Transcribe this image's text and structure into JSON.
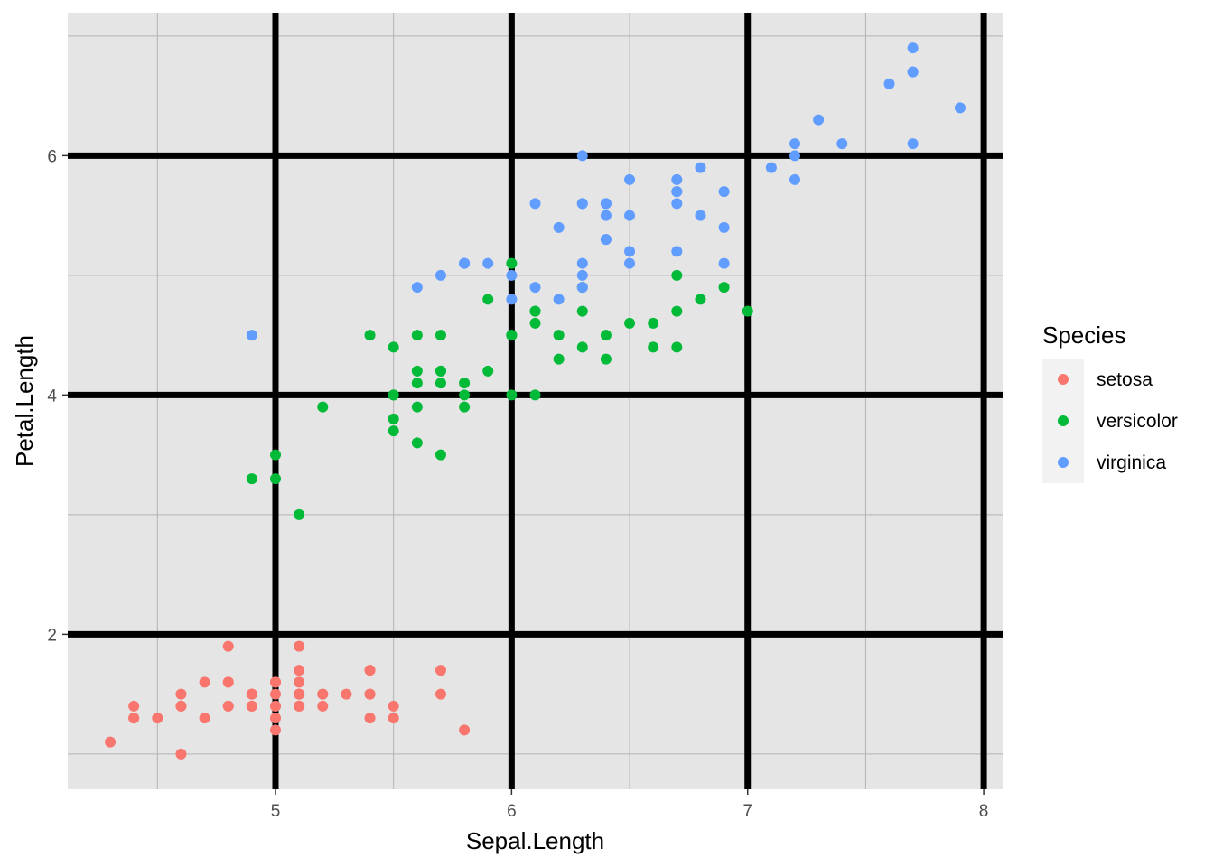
{
  "chart_data": {
    "type": "scatter",
    "title": "",
    "xlabel": "Sepal.Length",
    "ylabel": "Petal.Length",
    "xlim": [
      4.12,
      8.08
    ],
    "ylim": [
      0.705,
      7.195
    ],
    "x_ticks": [
      5,
      6,
      7,
      8
    ],
    "y_ticks": [
      2,
      4,
      6
    ],
    "x_minor_ticks": [
      4.5,
      5.5,
      6.5,
      7.5
    ],
    "y_minor_ticks": [
      1,
      3,
      5,
      7
    ],
    "grid": true,
    "background_color": "#e5e5e5",
    "major_grid_color": "#000000",
    "minor_grid_color": "#b3b3b3",
    "legend_position": "right",
    "legend_title": "Species",
    "series": [
      {
        "name": "setosa",
        "color": "#f8766d",
        "points": [
          [
            5.1,
            1.4
          ],
          [
            4.9,
            1.4
          ],
          [
            4.7,
            1.3
          ],
          [
            4.6,
            1.5
          ],
          [
            5.0,
            1.4
          ],
          [
            5.4,
            1.7
          ],
          [
            4.6,
            1.4
          ],
          [
            5.0,
            1.5
          ],
          [
            4.4,
            1.4
          ],
          [
            4.9,
            1.5
          ],
          [
            5.4,
            1.5
          ],
          [
            4.8,
            1.6
          ],
          [
            4.8,
            1.4
          ],
          [
            4.3,
            1.1
          ],
          [
            5.8,
            1.2
          ],
          [
            5.7,
            1.5
          ],
          [
            5.4,
            1.3
          ],
          [
            5.1,
            1.4
          ],
          [
            5.7,
            1.7
          ],
          [
            5.1,
            1.5
          ],
          [
            5.4,
            1.7
          ],
          [
            5.1,
            1.5
          ],
          [
            4.6,
            1.0
          ],
          [
            5.1,
            1.7
          ],
          [
            4.8,
            1.9
          ],
          [
            5.0,
            1.6
          ],
          [
            5.0,
            1.6
          ],
          [
            5.2,
            1.5
          ],
          [
            5.2,
            1.4
          ],
          [
            4.7,
            1.6
          ],
          [
            4.8,
            1.6
          ],
          [
            5.4,
            1.5
          ],
          [
            5.2,
            1.5
          ],
          [
            5.5,
            1.4
          ],
          [
            4.9,
            1.5
          ],
          [
            5.0,
            1.2
          ],
          [
            5.5,
            1.3
          ],
          [
            4.9,
            1.4
          ],
          [
            4.4,
            1.3
          ],
          [
            5.1,
            1.5
          ],
          [
            5.0,
            1.3
          ],
          [
            4.5,
            1.3
          ],
          [
            4.4,
            1.3
          ],
          [
            5.0,
            1.6
          ],
          [
            5.1,
            1.9
          ],
          [
            4.8,
            1.4
          ],
          [
            5.1,
            1.6
          ],
          [
            4.6,
            1.4
          ],
          [
            5.3,
            1.5
          ],
          [
            5.0,
            1.4
          ]
        ]
      },
      {
        "name": "versicolor",
        "color": "#00ba38",
        "points": [
          [
            7.0,
            4.7
          ],
          [
            6.4,
            4.5
          ],
          [
            6.9,
            4.9
          ],
          [
            5.5,
            4.0
          ],
          [
            6.5,
            4.6
          ],
          [
            5.7,
            4.5
          ],
          [
            6.3,
            4.7
          ],
          [
            4.9,
            3.3
          ],
          [
            6.6,
            4.6
          ],
          [
            5.2,
            3.9
          ],
          [
            5.0,
            3.5
          ],
          [
            5.9,
            4.2
          ],
          [
            6.0,
            4.0
          ],
          [
            6.1,
            4.7
          ],
          [
            5.6,
            3.6
          ],
          [
            6.7,
            4.4
          ],
          [
            5.6,
            4.5
          ],
          [
            5.8,
            4.1
          ],
          [
            6.2,
            4.5
          ],
          [
            5.6,
            3.9
          ],
          [
            5.9,
            4.8
          ],
          [
            6.1,
            4.0
          ],
          [
            6.3,
            4.9
          ],
          [
            6.1,
            4.7
          ],
          [
            6.4,
            4.3
          ],
          [
            6.6,
            4.4
          ],
          [
            6.8,
            4.8
          ],
          [
            6.7,
            5.0
          ],
          [
            6.0,
            4.5
          ],
          [
            5.7,
            3.5
          ],
          [
            5.5,
            3.8
          ],
          [
            5.5,
            3.7
          ],
          [
            5.8,
            3.9
          ],
          [
            6.0,
            5.1
          ],
          [
            5.4,
            4.5
          ],
          [
            6.0,
            4.5
          ],
          [
            6.7,
            4.7
          ],
          [
            6.3,
            4.4
          ],
          [
            5.6,
            4.1
          ],
          [
            5.5,
            4.0
          ],
          [
            5.5,
            4.4
          ],
          [
            6.1,
            4.6
          ],
          [
            5.8,
            4.0
          ],
          [
            5.0,
            3.3
          ],
          [
            5.6,
            4.2
          ],
          [
            5.7,
            4.2
          ],
          [
            5.7,
            4.2
          ],
          [
            6.2,
            4.3
          ],
          [
            5.1,
            3.0
          ],
          [
            5.7,
            4.1
          ]
        ]
      },
      {
        "name": "virginica",
        "color": "#619cff",
        "points": [
          [
            6.3,
            6.0
          ],
          [
            5.8,
            5.1
          ],
          [
            7.1,
            5.9
          ],
          [
            6.3,
            5.6
          ],
          [
            6.5,
            5.8
          ],
          [
            7.6,
            6.6
          ],
          [
            4.9,
            4.5
          ],
          [
            7.3,
            6.3
          ],
          [
            6.7,
            5.8
          ],
          [
            7.2,
            6.1
          ],
          [
            6.5,
            5.1
          ],
          [
            6.4,
            5.3
          ],
          [
            6.8,
            5.5
          ],
          [
            5.7,
            5.0
          ],
          [
            5.8,
            5.1
          ],
          [
            6.4,
            5.3
          ],
          [
            6.5,
            5.5
          ],
          [
            7.7,
            6.7
          ],
          [
            7.7,
            6.9
          ],
          [
            6.0,
            5.0
          ],
          [
            6.9,
            5.7
          ],
          [
            5.6,
            4.9
          ],
          [
            7.7,
            6.7
          ],
          [
            6.3,
            4.9
          ],
          [
            6.7,
            5.7
          ],
          [
            7.2,
            6.0
          ],
          [
            6.2,
            4.8
          ],
          [
            6.1,
            4.9
          ],
          [
            6.4,
            5.6
          ],
          [
            7.2,
            5.8
          ],
          [
            7.4,
            6.1
          ],
          [
            7.9,
            6.4
          ],
          [
            6.4,
            5.6
          ],
          [
            6.3,
            5.1
          ],
          [
            6.1,
            5.6
          ],
          [
            7.7,
            6.1
          ],
          [
            6.3,
            5.6
          ],
          [
            6.4,
            5.5
          ],
          [
            6.0,
            4.8
          ],
          [
            6.9,
            5.4
          ],
          [
            6.7,
            5.6
          ],
          [
            6.9,
            5.1
          ],
          [
            5.8,
            5.1
          ],
          [
            6.8,
            5.9
          ],
          [
            6.7,
            5.7
          ],
          [
            6.7,
            5.2
          ],
          [
            6.3,
            5.0
          ],
          [
            6.5,
            5.2
          ],
          [
            6.2,
            5.4
          ],
          [
            5.9,
            5.1
          ]
        ]
      }
    ]
  }
}
